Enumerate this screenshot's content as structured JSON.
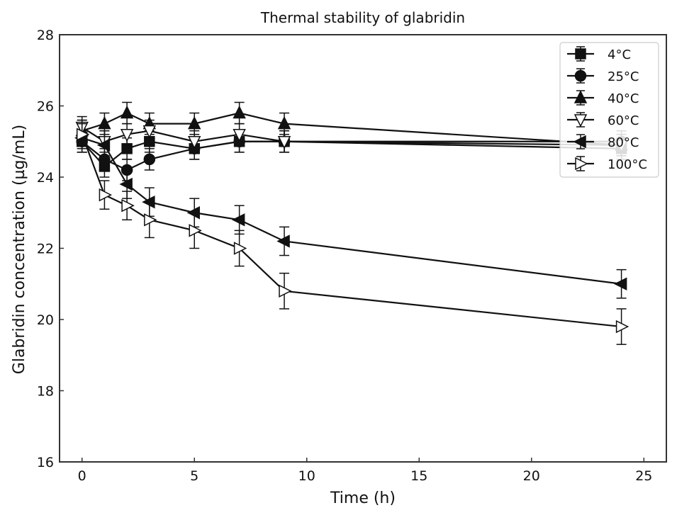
{
  "chart_data": {
    "type": "line",
    "title": "Thermal stability of glabridin",
    "xlabel": "Time (h)",
    "ylabel": "Glabridin concentration (µg/mL)",
    "xlim": [
      -1,
      26
    ],
    "ylim": [
      16,
      28
    ],
    "xticks": [
      0,
      5,
      10,
      15,
      20,
      25
    ],
    "yticks": [
      16,
      18,
      20,
      22,
      24,
      26,
      28
    ],
    "grid": false,
    "legend_position": "top-right",
    "x": [
      0,
      1,
      2,
      3,
      5,
      7,
      9,
      24
    ],
    "series": [
      {
        "name": "4°C",
        "marker": "square",
        "filled": true,
        "values": [
          25.0,
          24.3,
          24.8,
          25.0,
          24.8,
          25.0,
          25.0,
          24.8
        ],
        "errors": [
          0.3,
          0.3,
          0.3,
          0.3,
          0.3,
          0.3,
          0.3,
          0.3
        ]
      },
      {
        "name": "25°C",
        "marker": "circle",
        "filled": true,
        "values": [
          25.0,
          24.5,
          24.2,
          24.5,
          24.8,
          25.0,
          25.0,
          25.0
        ],
        "errors": [
          0.3,
          0.3,
          0.3,
          0.3,
          0.3,
          0.3,
          0.3,
          0.3
        ]
      },
      {
        "name": "40°C",
        "marker": "triangle-up",
        "filled": true,
        "values": [
          25.3,
          25.5,
          25.8,
          25.5,
          25.5,
          25.8,
          25.5,
          24.9
        ],
        "errors": [
          0.3,
          0.3,
          0.3,
          0.3,
          0.3,
          0.3,
          0.3,
          0.3
        ]
      },
      {
        "name": "60°C",
        "marker": "triangle-down",
        "filled": false,
        "values": [
          25.4,
          25.0,
          25.2,
          25.3,
          25.0,
          25.2,
          25.0,
          24.9
        ],
        "errors": [
          0.3,
          0.3,
          0.3,
          0.3,
          0.3,
          0.3,
          0.3,
          0.3
        ]
      },
      {
        "name": "80°C",
        "marker": "triangle-left",
        "filled": true,
        "values": [
          25.1,
          24.9,
          23.8,
          23.3,
          23.0,
          22.8,
          22.2,
          21.0
        ],
        "errors": [
          0.4,
          0.4,
          0.4,
          0.4,
          0.4,
          0.4,
          0.4,
          0.4
        ]
      },
      {
        "name": "100°C",
        "marker": "triangle-right",
        "filled": false,
        "values": [
          25.2,
          23.5,
          23.2,
          22.8,
          22.5,
          22.0,
          20.8,
          19.8
        ],
        "errors": [
          0.4,
          0.4,
          0.4,
          0.5,
          0.5,
          0.5,
          0.5,
          0.5
        ]
      }
    ],
    "colors": {
      "line": "#111111",
      "background": "#ffffff"
    }
  }
}
